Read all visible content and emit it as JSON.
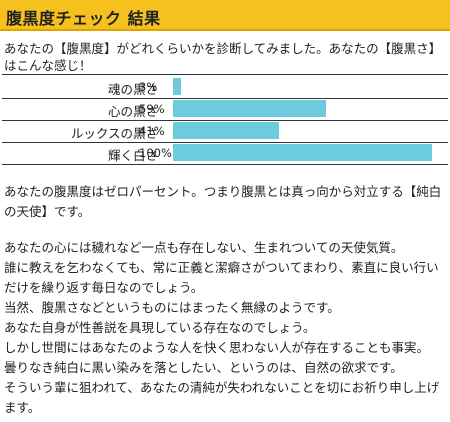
{
  "header": {
    "title": "腹黒度チェック 結果"
  },
  "intro": "あなたの【腹黒度】がどれくらいかを診断してみました。あなたの【腹黒さ】はこんな感じ！",
  "colors": {
    "header_bg": "#f6c11f",
    "bar": "#6ccbdc"
  },
  "scores": [
    {
      "label": "魂の黒さ",
      "percent_text": "3%",
      "value": 3
    },
    {
      "label": "心の黒さ",
      "percent_text": "59%",
      "value": 59
    },
    {
      "label": "ルックスの黒さ",
      "percent_text": "41%",
      "value": 41
    },
    {
      "label": "輝く白さ",
      "percent_text": "100%",
      "value": 100
    }
  ],
  "result_summary": "あなたの腹黒度はゼロパーセント。つまり腹黒とは真っ向から対立する【純白の天使】です。",
  "paragraphs": [
    "あなたの心には穢れなど一点も存在しない、生まれついての天使気質。",
    "誰に教えを乞わなくても、常に正義と潔癖さがついてまわり、素直に良い行いだけを繰り返す毎日なのでしょう。",
    "当然、腹黒さなどというものにはまったく無縁のようです。",
    "あなた自身が性善説を具現している存在なのでしょう。",
    "しかし世間にはあなたのような人を快く思わない人が存在することも事実。",
    "曇りなき純白に黒い染みを落としたい、というのは、自然の欲求です。",
    "そういう輩に狙われて、あなたの清純が失われないことを切にお祈り申し上げます。"
  ]
}
